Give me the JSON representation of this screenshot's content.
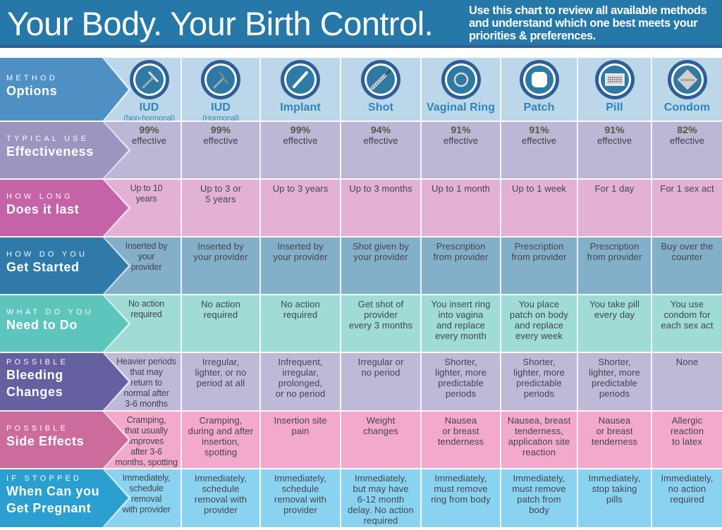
{
  "banner": {
    "title": "Your Body. Your Birth Control.",
    "subtitle": "Use this chart to review all available methods and understand which one best meets your priorities & preferences.",
    "color": "#2578a8"
  },
  "methods": [
    {
      "name": "IUD",
      "sub": "(Non-hormonal)",
      "icon": "iud-copper-icon"
    },
    {
      "name": "IUD",
      "sub": "(Hormonal)",
      "icon": "iud-hormonal-icon"
    },
    {
      "name": "Implant",
      "sub": "",
      "icon": "implant-rod-icon"
    },
    {
      "name": "Shot",
      "sub": "",
      "icon": "syringe-icon"
    },
    {
      "name": "Vaginal Ring",
      "sub": "",
      "icon": "ring-icon"
    },
    {
      "name": "Patch",
      "sub": "",
      "icon": "patch-icon"
    },
    {
      "name": "Pill",
      "sub": "",
      "icon": "pill-pack-icon"
    },
    {
      "name": "Condom",
      "sub": "",
      "icon": "condom-packet-icon",
      "icon_text": "CONDOM"
    }
  ],
  "rows": [
    {
      "key": "method",
      "label_small": "METHOD",
      "label_big": "Options",
      "label_color": "#4f90c4",
      "cell_color": "#bcd7ea"
    },
    {
      "key": "effectiveness",
      "label_small": "TYPICAL USE",
      "label_big": "Effectiveness",
      "label_color": "#9a96c0",
      "cell_color": "#bbb7d4",
      "cells": [
        {
          "pct": "99%",
          "text": "effective"
        },
        {
          "pct": "99%",
          "text": "effective"
        },
        {
          "pct": "99%",
          "text": "effective"
        },
        {
          "pct": "94%",
          "text": "effective"
        },
        {
          "pct": "91%",
          "text": "effective"
        },
        {
          "pct": "91%",
          "text": "effective"
        },
        {
          "pct": "91%",
          "text": "effective"
        },
        {
          "pct": "82%",
          "text": "effective"
        }
      ]
    },
    {
      "key": "duration",
      "label_small": "HOW LONG",
      "label_big": "Does it last",
      "label_color": "#c463a7",
      "cell_color": "#e2b1d4",
      "cells": [
        "Up to 10\nyears",
        "Up to 3 or\n5 years",
        "Up to 3 years",
        "Up to 3 months",
        "Up to 1 month",
        "Up to 1 week",
        "For 1 day",
        "For 1 sex act"
      ]
    },
    {
      "key": "get_started",
      "label_small": "HOW DO YOU",
      "label_big": "Get Started",
      "label_color": "#2f7aa8",
      "cell_color": "#84afc9",
      "cells": [
        "Inserted by\nyour\nprovider",
        "Inserted by\nyour provider",
        "Inserted by\nyour provider",
        "Shot given by\nyour provider",
        "Prescription\nfrom provider",
        "Prescription\nfrom provider",
        "Prescription\nfrom provider",
        "Buy over the\ncounter"
      ]
    },
    {
      "key": "need_to_do",
      "label_small": "WHAT DO YOU",
      "label_big": "Need to Do",
      "label_color": "#5ec5bd",
      "cell_color": "#9fdcd5",
      "cells": [
        "No action\nrequired",
        "No action\nrequired",
        "No action\nrequired",
        "Get shot of\nprovider\nevery 3 months",
        "You insert ring\ninto vagina\nand replace\nevery month",
        "You place\npatch on body\nand replace\nevery week",
        "You take pill\nevery day",
        "You use\ncondom for\neach sex act"
      ]
    },
    {
      "key": "bleeding",
      "label_small": "POSSIBLE",
      "label_big": "Bleeding\nChanges",
      "label_color": "#6560a0",
      "cell_color": "#bdb9d6",
      "cells": [
        "Heavier periods\nthat may\nreturn to\nnormal after\n3-6 months",
        "Irregular,\nlighter, or no\nperiod at all",
        "Infrequent,\nirregular,\nprolonged,\nor no period",
        "Irregular or\nno period",
        "Shorter,\nlighter, more\npredictable\nperiods",
        "Shorter,\nlighter, more\npredictable\nperiods",
        "Shorter,\nlighter, more\npredictable\nperiods",
        "None"
      ]
    },
    {
      "key": "side_effects",
      "label_small": "POSSIBLE",
      "label_big": "Side Effects",
      "label_color": "#cc6c9c",
      "cell_color": "#f2a9cb",
      "cells": [
        "Cramping,\nthat usually\nimproves\nafter 3-6\nmonths, spotting",
        "Cramping,\nduring and after\ninsertion,\nspotting",
        "Insertion site\npain",
        "Weight\nchanges",
        "Nausea\nor breast\ntenderness",
        "Nausea, breast\ntenderness,\napplication site\nreaction",
        "Nausea\nor breast\ntenderness",
        "Allergic\nreaction\nto latex"
      ]
    },
    {
      "key": "pregnant",
      "label_small": "IF STOPPED",
      "label_big": "When Can you\nGet Pregnant",
      "label_color": "#2b9fd0",
      "cell_color": "#8ad3f0",
      "cells": [
        "Immediately,\nschedule\nremoval\nwith provider",
        "Immediately,\nschedule\nremoval with\nprovider",
        "Immediately,\nschedule\nremoval with\nprovider",
        "Immediately,\nbut may have\n6-12 month\ndelay. No action\nrequired",
        "Immediately,\nmust remove\nring from body",
        "Immediately,\nmust remove\npatch from\nbody",
        "Immediately,\nstop taking\npills",
        "Immediately,\nno action\nrequired"
      ]
    }
  ]
}
